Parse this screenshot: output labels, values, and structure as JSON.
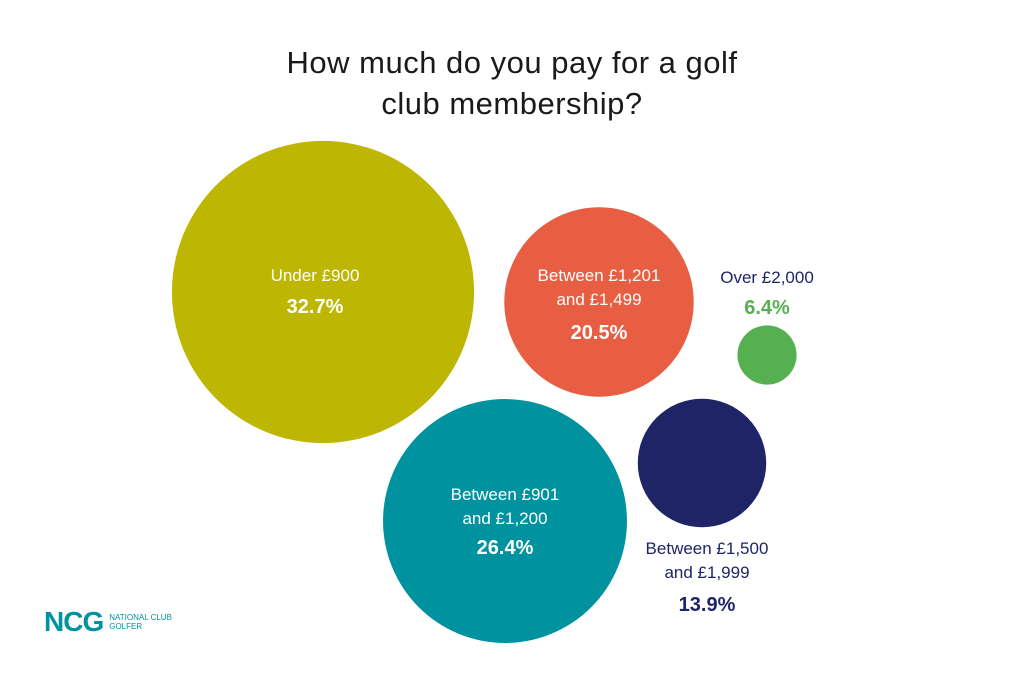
{
  "chart_data": {
    "type": "bubble",
    "title": "How much do you pay for a golf club membership?",
    "categories": [
      "Under £900",
      "Between £1,201 and £1,499",
      "Over £2,000",
      "Between £901 and £1,200",
      "Between £1,500 and £1,999"
    ],
    "values": [
      32.7,
      20.5,
      6.4,
      26.4,
      13.9
    ],
    "value_labels": [
      "32.7%",
      "20.5%",
      "6.4%",
      "26.4%",
      "13.9%"
    ],
    "colors": [
      "#bdb602",
      "#e85e43",
      "#57b04f",
      "#00929f",
      "#1f2466"
    ]
  },
  "logo": {
    "mark": "NCG",
    "name": "NATIONAL CLUB GOLFER"
  }
}
